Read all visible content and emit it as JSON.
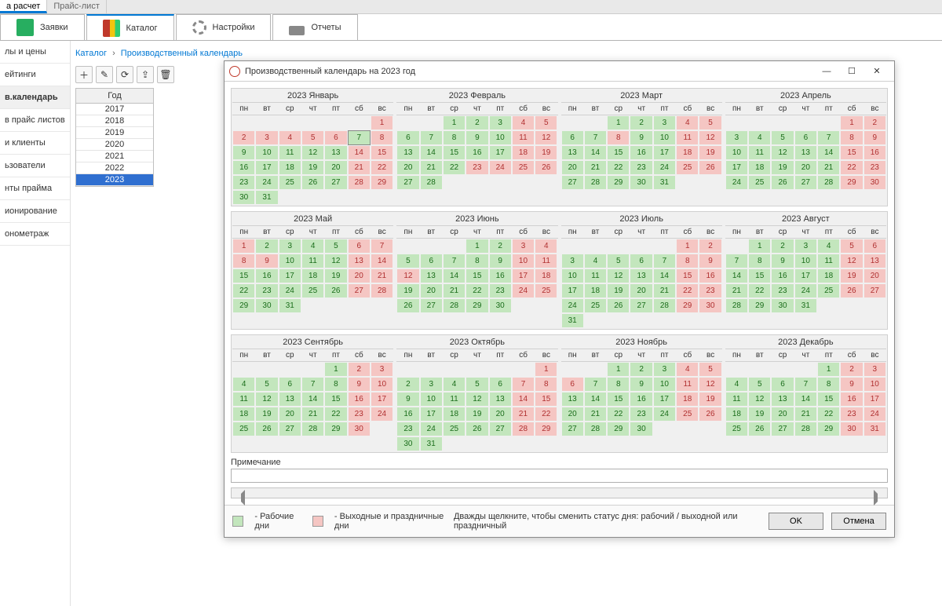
{
  "small_tabs": [
    "а расчет",
    "Прайс-лист"
  ],
  "small_tab_active": 0,
  "big_tabs": [
    {
      "label": "Заявки",
      "icon": "doc"
    },
    {
      "label": "Каталог",
      "icon": "book"
    },
    {
      "label": "Настройки",
      "icon": "gear"
    },
    {
      "label": "Отчеты",
      "icon": "print"
    }
  ],
  "big_tab_active": 1,
  "sidebar": [
    "лы и цены",
    "ейтинги",
    "в.календарь",
    "в прайс листов",
    "и клиенты",
    "ьзователи",
    "нты прайма",
    "ионирование",
    "онометраж"
  ],
  "sidebar_active": 2,
  "breadcrumb": [
    "Каталог",
    "Производственный календарь"
  ],
  "toolbar_icons": [
    "add-icon",
    "edit-icon",
    "refresh-icon",
    "export-icon",
    "delete-icon"
  ],
  "year_header": "Год",
  "years": [
    "2017",
    "2018",
    "2019",
    "2020",
    "2021",
    "2022",
    "2023"
  ],
  "year_selected": "2023",
  "modal": {
    "title": "Производственный календарь на 2023 год",
    "weekdays": [
      "пн",
      "вт",
      "ср",
      "чт",
      "пт",
      "сб",
      "вс"
    ],
    "note_label": "Примечание",
    "legend_work": "- Рабочие дни",
    "legend_off": "- Выходные и праздничные дни",
    "hint": "Дважды щелкните, чтобы сменить статус дня: рабочий / выходной или праздничный",
    "ok": "OK",
    "cancel": "Отмена",
    "months": [
      {
        "title": "2023 Январь",
        "start": 6,
        "len": 31,
        "off": [
          1,
          2,
          3,
          4,
          5,
          6,
          8,
          14,
          15,
          21,
          22,
          28,
          29
        ],
        "pre": [
          7
        ]
      },
      {
        "title": "2023 Февраль",
        "start": 2,
        "len": 28,
        "off": [
          4,
          5,
          11,
          12,
          18,
          19,
          23,
          24,
          25,
          26
        ]
      },
      {
        "title": "2023 Март",
        "start": 2,
        "len": 31,
        "off": [
          4,
          5,
          8,
          11,
          12,
          18,
          19,
          25,
          26
        ]
      },
      {
        "title": "2023 Апрель",
        "start": 5,
        "len": 30,
        "off": [
          1,
          2,
          8,
          9,
          15,
          16,
          22,
          23,
          29,
          30
        ]
      },
      {
        "title": "2023 Май",
        "start": 0,
        "len": 31,
        "off": [
          1,
          6,
          7,
          8,
          9,
          13,
          14,
          20,
          21,
          27,
          28
        ]
      },
      {
        "title": "2023 Июнь",
        "start": 3,
        "len": 30,
        "off": [
          3,
          4,
          10,
          11,
          12,
          17,
          18,
          24,
          25
        ]
      },
      {
        "title": "2023 Июль",
        "start": 5,
        "len": 31,
        "off": [
          1,
          2,
          8,
          9,
          15,
          16,
          22,
          23,
          29,
          30
        ]
      },
      {
        "title": "2023 Август",
        "start": 1,
        "len": 31,
        "off": [
          5,
          6,
          12,
          13,
          19,
          20,
          26,
          27
        ]
      },
      {
        "title": "2023 Сентябрь",
        "start": 4,
        "len": 30,
        "off": [
          2,
          3,
          9,
          10,
          16,
          17,
          23,
          24,
          30
        ]
      },
      {
        "title": "2023 Октябрь",
        "start": 6,
        "len": 31,
        "off": [
          1,
          7,
          8,
          14,
          15,
          21,
          22,
          28,
          29
        ]
      },
      {
        "title": "2023 Ноябрь",
        "start": 2,
        "len": 30,
        "off": [
          4,
          5,
          6,
          11,
          12,
          18,
          19,
          25,
          26
        ]
      },
      {
        "title": "2023 Декабрь",
        "start": 4,
        "len": 31,
        "off": [
          2,
          3,
          9,
          10,
          16,
          17,
          23,
          24,
          30,
          31
        ]
      }
    ],
    "colors": {
      "work": "#c3e6bd",
      "off": "#f5c6c3",
      "empty": "#f0f0f0"
    }
  }
}
